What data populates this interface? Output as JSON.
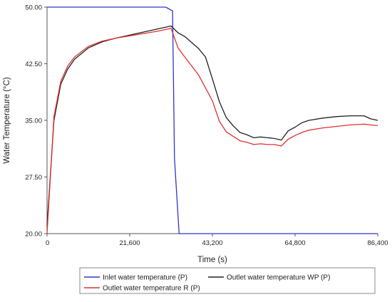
{
  "chart_data": {
    "type": "line",
    "xlabel": "Time (s)",
    "ylabel": "Water Temperature (°C)",
    "xlim": [
      0,
      86400
    ],
    "ylim": [
      20,
      50
    ],
    "xticks": [
      0,
      21600,
      43200,
      64800,
      86400
    ],
    "xtick_labels": [
      "0",
      "21,600",
      "43,200",
      "64,800",
      "86,400"
    ],
    "yticks": [
      20,
      27.5,
      35,
      42.5,
      50
    ],
    "ytick_labels": [
      "20.00",
      "27.50",
      "35.00",
      "42.50",
      "50.00"
    ],
    "grid": false,
    "legend_position": "bottom",
    "series": [
      {
        "name": "Inlet water temperature (P)",
        "color": "#3333cc",
        "points": [
          [
            0,
            50
          ],
          [
            31000,
            50
          ],
          [
            32800,
            49.5
          ],
          [
            33300,
            30
          ],
          [
            34500,
            20
          ],
          [
            86400,
            20
          ]
        ]
      },
      {
        "name": "Outlet water temperature WP (P)",
        "color": "#222222",
        "points": [
          [
            0,
            21
          ],
          [
            1800,
            35
          ],
          [
            3600,
            39.8
          ],
          [
            5400,
            41.8
          ],
          [
            7200,
            43.1
          ],
          [
            10800,
            44.6
          ],
          [
            14400,
            45.4
          ],
          [
            18000,
            45.9
          ],
          [
            21600,
            46.3
          ],
          [
            25200,
            46.7
          ],
          [
            28800,
            47.1
          ],
          [
            32400,
            47.5
          ],
          [
            34200,
            46.6
          ],
          [
            36000,
            46.1
          ],
          [
            39600,
            44.5
          ],
          [
            41400,
            43.4
          ],
          [
            43200,
            40.5
          ],
          [
            45000,
            37.5
          ],
          [
            46800,
            35.4
          ],
          [
            48600,
            34.3
          ],
          [
            50400,
            33.4
          ],
          [
            52200,
            33.1
          ],
          [
            54000,
            32.7
          ],
          [
            55800,
            32.8
          ],
          [
            57600,
            32.7
          ],
          [
            59400,
            32.6
          ],
          [
            61200,
            32.4
          ],
          [
            63000,
            33.6
          ],
          [
            64800,
            34.1
          ],
          [
            66600,
            34.7
          ],
          [
            68400,
            35.0
          ],
          [
            72000,
            35.3
          ],
          [
            75600,
            35.5
          ],
          [
            79200,
            35.6
          ],
          [
            82800,
            35.6
          ],
          [
            84600,
            35.2
          ],
          [
            86400,
            35.0
          ]
        ]
      },
      {
        "name": "Outlet water temperature R (P)",
        "color": "#e03030",
        "points": [
          [
            0,
            20
          ],
          [
            1800,
            35.5
          ],
          [
            3600,
            40.2
          ],
          [
            5400,
            42.2
          ],
          [
            7200,
            43.4
          ],
          [
            10800,
            44.8
          ],
          [
            14400,
            45.5
          ],
          [
            18000,
            45.9
          ],
          [
            21600,
            46.2
          ],
          [
            25200,
            46.5
          ],
          [
            28800,
            46.8
          ],
          [
            32400,
            47.2
          ],
          [
            34200,
            44.6
          ],
          [
            36000,
            43.4
          ],
          [
            39600,
            41.0
          ],
          [
            41400,
            39.3
          ],
          [
            43200,
            37.6
          ],
          [
            45000,
            34.9
          ],
          [
            46800,
            33.5
          ],
          [
            48600,
            32.9
          ],
          [
            50400,
            32.3
          ],
          [
            52200,
            32.1
          ],
          [
            54000,
            31.8
          ],
          [
            55800,
            31.9
          ],
          [
            57600,
            31.8
          ],
          [
            59400,
            31.8
          ],
          [
            61200,
            31.6
          ],
          [
            63000,
            32.5
          ],
          [
            64800,
            33.0
          ],
          [
            66600,
            33.4
          ],
          [
            68400,
            33.7
          ],
          [
            72000,
            34.0
          ],
          [
            75600,
            34.2
          ],
          [
            79200,
            34.4
          ],
          [
            82800,
            34.5
          ],
          [
            84600,
            34.4
          ],
          [
            86400,
            34.3
          ]
        ]
      }
    ]
  }
}
